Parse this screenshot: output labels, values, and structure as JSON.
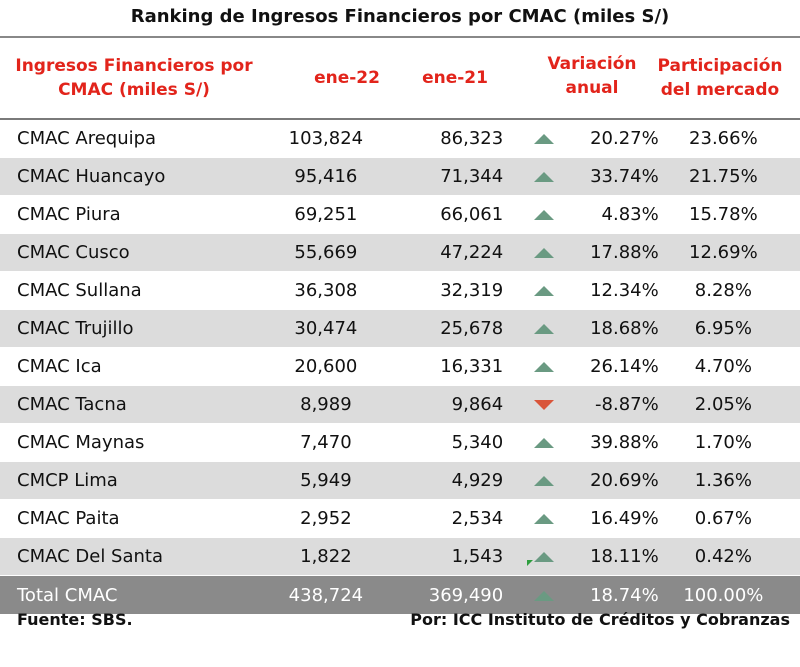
{
  "title": "Ranking de Ingresos Financieros por CMAC (miles S/)",
  "headers": {
    "entity": "Ingresos Financieros por CMAC (miles S/)",
    "col1": "ene-22",
    "col2": "ene-21",
    "variation": "Variación anual",
    "share": "Participación del mercado"
  },
  "rows": [
    {
      "name": "CMAC Arequipa",
      "v22": "103,824",
      "v21": "86,323",
      "trend": "up",
      "var": "20.27%",
      "share": "23.66%"
    },
    {
      "name": "CMAC Huancayo",
      "v22": "95,416",
      "v21": "71,344",
      "trend": "up",
      "var": "33.74%",
      "share": "21.75%"
    },
    {
      "name": "CMAC Piura",
      "v22": "69,251",
      "v21": "66,061",
      "trend": "up",
      "var": "4.83%",
      "share": "15.78%"
    },
    {
      "name": "CMAC Cusco",
      "v22": "55,669",
      "v21": "47,224",
      "trend": "up",
      "var": "17.88%",
      "share": "12.69%"
    },
    {
      "name": "CMAC Sullana",
      "v22": "36,308",
      "v21": "32,319",
      "trend": "up",
      "var": "12.34%",
      "share": "8.28%"
    },
    {
      "name": "CMAC Trujillo",
      "v22": "30,474",
      "v21": "25,678",
      "trend": "up",
      "var": "18.68%",
      "share": "6.95%"
    },
    {
      "name": "CMAC Ica",
      "v22": "20,600",
      "v21": "16,331",
      "trend": "up",
      "var": "26.14%",
      "share": "4.70%"
    },
    {
      "name": "CMAC Tacna",
      "v22": "8,989",
      "v21": "9,864",
      "trend": "down",
      "var": "-8.87%",
      "share": "2.05%"
    },
    {
      "name": "CMAC Maynas",
      "v22": "7,470",
      "v21": "5,340",
      "trend": "up",
      "var": "39.88%",
      "share": "1.70%"
    },
    {
      "name": "CMCP Lima",
      "v22": "5,949",
      "v21": "4,929",
      "trend": "up",
      "var": "20.69%",
      "share": "1.36%"
    },
    {
      "name": "CMAC Paita",
      "v22": "2,952",
      "v21": "2,534",
      "trend": "up",
      "var": "16.49%",
      "share": "0.67%"
    },
    {
      "name": "CMAC Del Santa",
      "v22": "1,822",
      "v21": "1,543",
      "trend": "up",
      "var": "18.11%",
      "share": "0.42%"
    }
  ],
  "total": {
    "name": "Total CMAC",
    "v22": "438,724",
    "v21": "369,490",
    "trend": "up",
    "var": "18.74%",
    "share": "100.00%"
  },
  "footer": {
    "source": "Fuente: SBS.",
    "credit": "Por: ICC Instituto de Créditos y Cobranzas"
  },
  "colors": {
    "header_red": "#e2241b",
    "up": "#6a9a82",
    "down": "#d9553a",
    "stripe": "#dcdcdc",
    "total_bg": "#8a8a8a"
  }
}
